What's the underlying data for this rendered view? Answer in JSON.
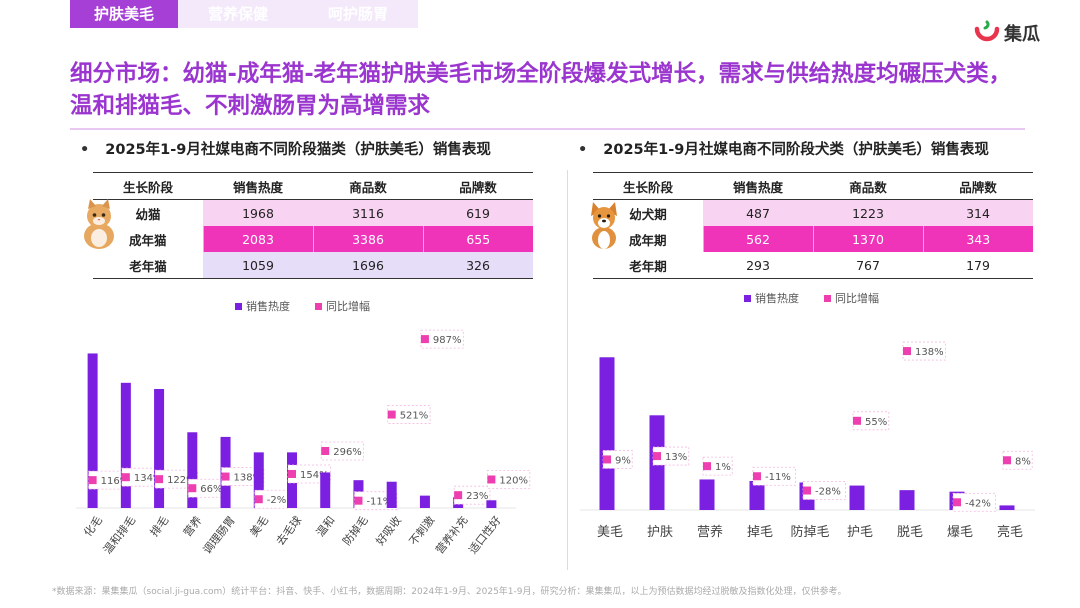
{
  "tabs": [
    {
      "label": "护肤美毛",
      "active": true
    },
    {
      "label": "营养保健",
      "active": false
    },
    {
      "label": "呵护肠胃",
      "active": false
    }
  ],
  "logo": {
    "name": "集瓜"
  },
  "title": "细分市场：幼猫-成年猫-老年猫护肤美毛市场全阶段爆发式增长，需求与供给热度均碾压犬类，温和排猫毛、不刺激肠胃为高增需求",
  "cat_section": {
    "subtitle": "2025年1-9月社媒电商不同阶段猫类（护肤美毛）销售表现",
    "table": {
      "headers": [
        "生长阶段",
        "销售热度",
        "商品数",
        "品牌数"
      ],
      "rows": [
        [
          "幼猫",
          "1968",
          "3116",
          "619"
        ],
        [
          "成年猫",
          "2083",
          "3386",
          "655"
        ],
        [
          "老年猫",
          "1059",
          "1696",
          "326"
        ]
      ]
    }
  },
  "dog_section": {
    "subtitle": "2025年1-9月社媒电商不同阶段犬类（护肤美毛）销售表现",
    "table": {
      "headers": [
        "生长阶段",
        "销售热度",
        "商品数",
        "品牌数"
      ],
      "rows": [
        [
          "幼犬期",
          "487",
          "1223",
          "314"
        ],
        [
          "成年期",
          "562",
          "1370",
          "343"
        ],
        [
          "老年期",
          "293",
          "767",
          "179"
        ]
      ]
    }
  },
  "chart_data": [
    {
      "type": "bar",
      "legend": [
        "销售热度",
        "同比增幅"
      ],
      "legend_position": "top",
      "categories": [
        "化毛",
        "温和排毛",
        "排毛",
        "营养",
        "调理肠胃",
        "美毛",
        "去毛球",
        "温和",
        "防掉毛",
        "好吸收",
        "不刺激",
        "营养补充",
        "适口性好"
      ],
      "series": [
        {
          "name": "销售热度",
          "values": [
            100,
            81,
            77,
            49,
            46,
            36,
            36,
            23,
            18,
            17,
            8,
            7,
            5
          ]
        },
        {
          "name": "同比增幅",
          "unit": "%",
          "values": [
            116,
            134,
            122,
            66,
            138,
            -2,
            154,
            296,
            -11,
            521,
            987,
            23,
            120
          ]
        }
      ],
      "ylim_bar": [
        0,
        110
      ],
      "ylim_growth": [
        -50,
        1000
      ],
      "grid": false
    },
    {
      "type": "bar",
      "legend": [
        "销售热度",
        "同比增幅"
      ],
      "legend_position": "top",
      "categories": [
        "美毛",
        "护肤",
        "营养",
        "掉毛",
        "防掉毛",
        "护毛",
        "脱毛",
        "爆毛",
        "亮毛"
      ],
      "series": [
        {
          "name": "销售热度",
          "values": [
            100,
            62,
            20,
            19,
            18,
            16,
            13,
            12,
            3
          ]
        },
        {
          "name": "同比增幅",
          "unit": "%",
          "values": [
            9,
            13,
            1,
            -11,
            -28,
            55,
            138,
            -42,
            8
          ]
        }
      ],
      "ylim_bar": [
        0,
        110
      ],
      "ylim_growth": [
        -50,
        150
      ],
      "grid": false
    }
  ],
  "footnote": "*数据来源：果集集瓜（social.ji-gua.com）统计平台：抖音、快手、小红书，数据周期：2024年1-9月、2025年1-9月，研究分析：果集集瓜，以上为预估数据均经过脱敏及指数化处理，仅供参考。",
  "colors": {
    "bar": "#7b1fe0",
    "growth": "#ee3fb1",
    "accent": "#a63fd6",
    "title": "#9b35cf"
  }
}
